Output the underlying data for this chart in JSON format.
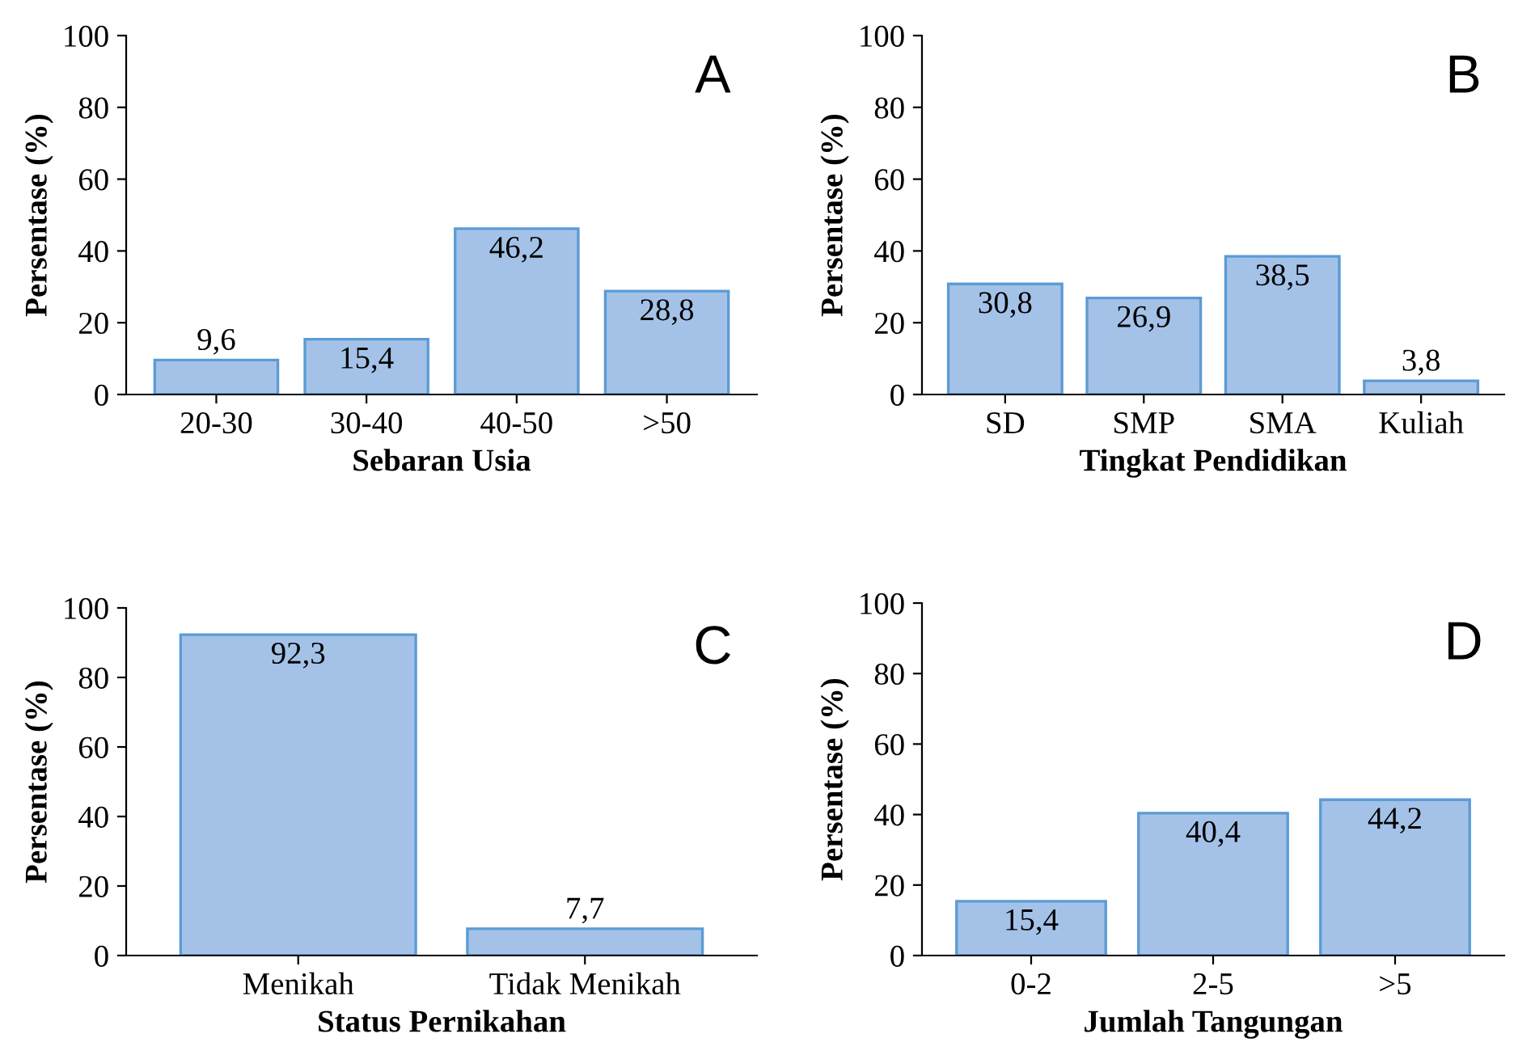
{
  "chart_data": [
    {
      "type": "bar",
      "xlabel": "Sebaran Usia",
      "ylabel": "Persentase (%)",
      "categories": [
        "20-30",
        "30-40",
        "40-50",
        ">50"
      ],
      "values": [
        9.6,
        15.4,
        46.2,
        28.8
      ],
      "value_labels": [
        "9,6",
        "15,4",
        "46,2",
        "28,8"
      ],
      "color": "#a4c2e8",
      "ylim": [
        0,
        100
      ],
      "yticks": [
        0,
        20,
        40,
        60,
        80,
        100
      ],
      "annotations": [
        "A"
      ],
      "grid": false,
      "legend": false
    },
    {
      "type": "bar",
      "xlabel": "Tingkat Pendidikan",
      "ylabel": "Persentase (%)",
      "categories": [
        "SD",
        "SMP",
        "SMA",
        "Kuliah"
      ],
      "values": [
        30.8,
        26.9,
        38.5,
        3.8
      ],
      "value_labels": [
        "30,8",
        "26,9",
        "38,5",
        "3,8"
      ],
      "color": "#a4c2e8",
      "ylim": [
        0,
        100
      ],
      "yticks": [
        0,
        20,
        40,
        60,
        80,
        100
      ],
      "annotations": [
        "B"
      ],
      "grid": false,
      "legend": false
    },
    {
      "type": "bar",
      "xlabel": "Status Pernikahan",
      "ylabel": "Persentase (%)",
      "categories": [
        "Menikah",
        "Tidak Menikah"
      ],
      "values": [
        92.3,
        7.7
      ],
      "value_labels": [
        "92,3",
        "7,7"
      ],
      "color": "#a4c2e8",
      "ylim": [
        0,
        100
      ],
      "yticks": [
        0,
        20,
        40,
        60,
        80,
        100
      ],
      "annotations": [
        "C"
      ],
      "grid": false,
      "legend": false
    },
    {
      "type": "bar",
      "xlabel": "Jumlah Tangungan",
      "ylabel": "Persentase (%)",
      "categories": [
        "0-2",
        "2-5",
        ">5"
      ],
      "values": [
        15.4,
        40.4,
        44.2
      ],
      "value_labels": [
        "15,4",
        "40,4",
        "44,2"
      ],
      "color": "#a4c2e8",
      "ylim": [
        0,
        100
      ],
      "yticks": [
        0,
        20,
        40,
        60,
        80,
        100
      ],
      "annotations": [
        "D"
      ],
      "grid": false,
      "legend": false
    }
  ]
}
